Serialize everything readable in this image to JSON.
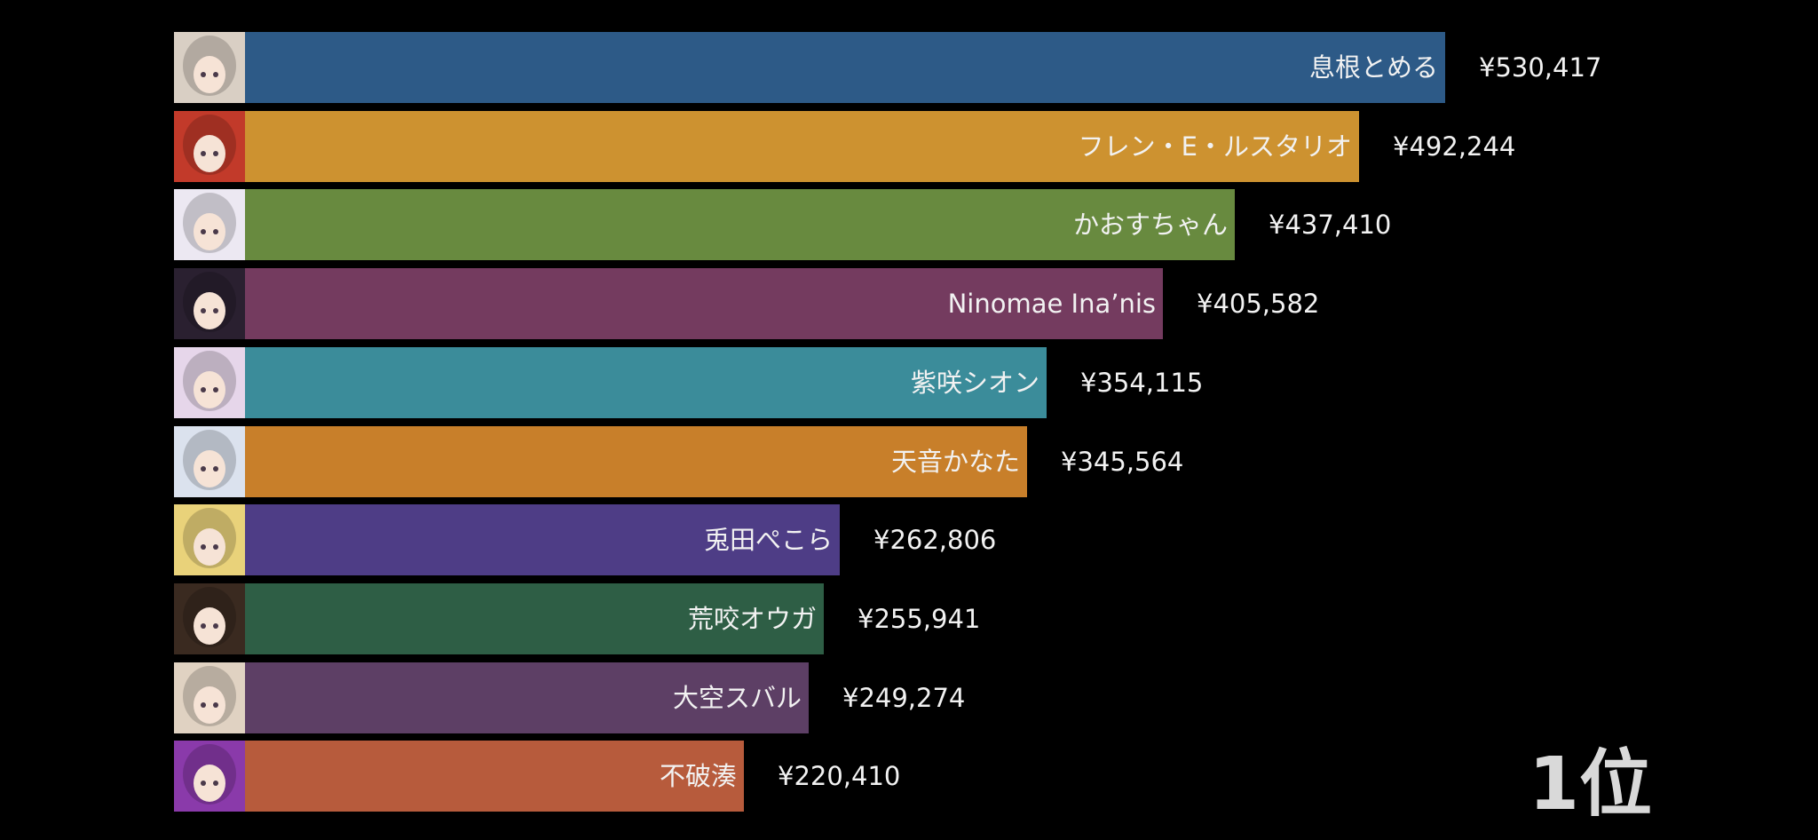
{
  "chart_data": {
    "type": "bar",
    "orientation": "horizontal",
    "grid": false,
    "xlim": [
      0,
      530417
    ],
    "categories": [
      "息根とめる",
      "フレン・E・ルスタリオ",
      "かおすちゃん",
      "Ninomae Ina’nis",
      "紫咲シオン",
      "天音かなた",
      "兎田ぺこら",
      "荒咬オウガ",
      "大空スバル",
      "不破湊"
    ],
    "values": [
      530417,
      492244,
      437410,
      405582,
      354115,
      345564,
      262806,
      255941,
      249274,
      220410
    ],
    "value_labels": [
      "¥530,417",
      "¥492,244",
      "¥437,410",
      "¥405,582",
      "¥354,115",
      "¥345,564",
      "¥262,806",
      "¥255,941",
      "¥249,274",
      "¥220,410"
    ],
    "bar_colors": [
      "#2d5a87",
      "#cd9230",
      "#688a3f",
      "#743b5f",
      "#3b8c9a",
      "#c87f2a",
      "#4e3d86",
      "#2e5e45",
      "#5d3f65",
      "#b75b3c"
    ],
    "avatar_colors": [
      "#d9cfc4",
      "#c23a2a",
      "#ece8f2",
      "#2a2030",
      "#e6d6ea",
      "#dbe2ee",
      "#e9d27a",
      "#3a2a20",
      "#e0d2c2",
      "#8a3aaa"
    ],
    "avatar_icons": [
      "avatar-icon",
      "avatar-icon",
      "avatar-icon",
      "avatar-icon",
      "avatar-icon",
      "avatar-icon",
      "avatar-icon",
      "avatar-icon",
      "avatar-icon",
      "avatar-icon"
    ]
  },
  "rank_label": "1位"
}
